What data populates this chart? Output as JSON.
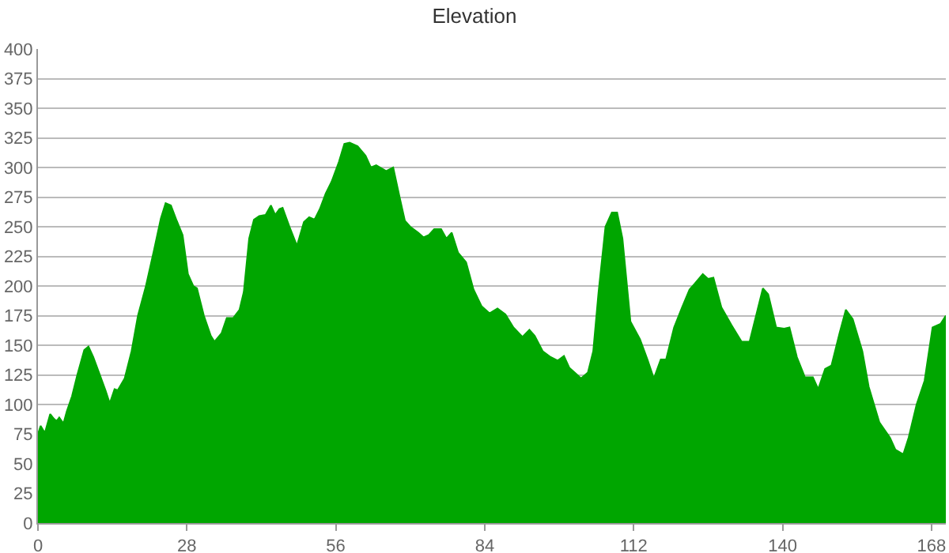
{
  "chart_data": {
    "type": "area",
    "title": "Elevation",
    "color": "#00a600",
    "x": [
      0,
      0.5,
      1.3,
      2.3,
      3,
      3.5,
      4,
      4.8,
      5.4,
      6.4,
      7.4,
      8.7,
      9.5,
      10.4,
      11.4,
      12.7,
      13.5,
      14.4,
      15,
      16.3,
      17.6,
      18.8,
      20.3,
      21.8,
      23.1,
      24,
      25,
      26.1,
      27.2,
      28.2,
      29.2,
      29.9,
      31.2,
      32.5,
      33.2,
      34.5,
      35.5,
      36.7,
      37.9,
      38.7,
      39.7,
      40.6,
      41.6,
      42.8,
      43.8,
      44.6,
      45.4,
      46,
      47.3,
      48.7,
      50,
      51,
      52,
      53,
      54.1,
      55.2,
      56.6,
      57.6,
      58.6,
      60.1,
      61.6,
      62.6,
      63.6,
      65.5,
      66.8,
      68,
      69,
      70,
      71.5,
      72.5,
      73.5,
      74.5,
      75.8,
      76.8,
      77.8,
      79,
      80.5,
      81.9,
      83.4,
      84.9,
      86.4,
      87.9,
      89.4,
      91.1,
      92.4,
      93.4,
      94.9,
      96.4,
      97.7,
      98.9,
      99.9,
      101.4,
      102.1,
      103.4,
      104.4,
      105.4,
      106.7,
      107.9,
      108.9,
      109.9,
      111.4,
      113.2,
      114.6,
      115.8,
      117.1,
      118.1,
      119.6,
      121.1,
      122.5,
      123.5,
      125,
      126,
      127,
      128.5,
      130.4,
      132.3,
      133.8,
      135.3,
      136.3,
      137.3,
      138.8,
      140.3,
      141.3,
      142.7,
      144.2,
      145.7,
      146.7,
      148,
      149.2,
      150.7,
      151.9,
      153.2,
      155,
      156.2,
      158.2,
      160.2,
      161.2,
      162.7,
      163.7,
      165.2,
      166.7,
      168.2,
      169.7,
      170.7
    ],
    "values": [
      75,
      82,
      76,
      92,
      88,
      86,
      89,
      84,
      94,
      107,
      125,
      146,
      149,
      140,
      128,
      112,
      101,
      113,
      112,
      122,
      145,
      175,
      200,
      230,
      257,
      270,
      268,
      255,
      243,
      210,
      200,
      198,
      175,
      158,
      153,
      160,
      173,
      173,
      180,
      195,
      240,
      256,
      259,
      260,
      268,
      260,
      265,
      266,
      250,
      234,
      254,
      258,
      256,
      265,
      278,
      288,
      305,
      320,
      321,
      318,
      310,
      300,
      302,
      297,
      300,
      275,
      255,
      250,
      245,
      241,
      243,
      248,
      248,
      240,
      245,
      228,
      220,
      197,
      183,
      177,
      181,
      176,
      165,
      157,
      163,
      158,
      145,
      140,
      137,
      141,
      131,
      125,
      122,
      127,
      145,
      195,
      250,
      262,
      262,
      240,
      170,
      155,
      138,
      122,
      138,
      138,
      165,
      182,
      197,
      202,
      210,
      206,
      207,
      182,
      167,
      153,
      153,
      180,
      198,
      193,
      165,
      164,
      165,
      140,
      123,
      123,
      113,
      130,
      133,
      160,
      180,
      172,
      145,
      115,
      85,
      72,
      62,
      58,
      72,
      100,
      120,
      165,
      168,
      175
    ],
    "xlim": [
      0,
      170.7
    ],
    "xticks": [
      0,
      28,
      56,
      84,
      112,
      140,
      168
    ],
    "ylim": [
      0,
      400
    ],
    "yticks": [
      0,
      25,
      50,
      75,
      100,
      125,
      150,
      175,
      200,
      225,
      250,
      275,
      300,
      325,
      350,
      375,
      400
    ],
    "grid": "y"
  }
}
